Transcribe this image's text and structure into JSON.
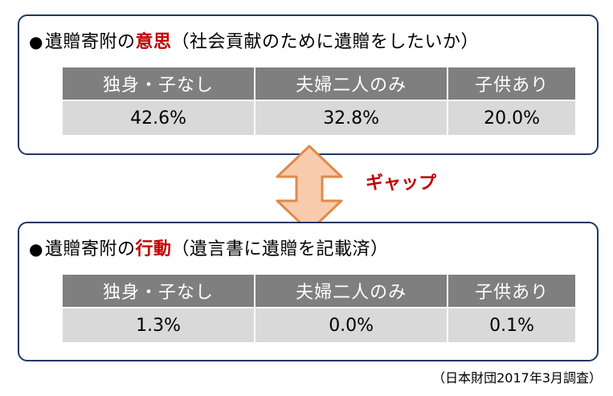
{
  "intent_panel": {
    "title_prefix": "遺贈寄附の",
    "title_highlight": "意思",
    "title_suffix": "（社会貢献のために遺贈をしたいか）",
    "headers": [
      "独身・子なし",
      "夫婦二人のみ",
      "子供あり"
    ],
    "values": [
      "42.6%",
      "32.8%",
      "20.0%"
    ]
  },
  "gap_label": "ギャップ",
  "action_panel": {
    "title_prefix": "遺贈寄附の",
    "title_highlight": "行動",
    "title_suffix": "（遺言書に遺贈を記載済）",
    "headers": [
      "独身・子なし",
      "夫婦二人のみ",
      "子供あり"
    ],
    "values": [
      "1.3%",
      "0.0%",
      "0.1%"
    ]
  },
  "source_note": "（日本財団2017年3月調査）",
  "colors": {
    "border": "#1f3864",
    "highlight": "#c00000",
    "header_bg": "#7f7f7f",
    "value_bg": "#d9d9d9",
    "arrow_fill": "#f8cbad",
    "arrow_stroke": "#e08a4a"
  },
  "icons": {
    "bullet": "●",
    "arrow": "double-vertical-arrow-icon"
  }
}
